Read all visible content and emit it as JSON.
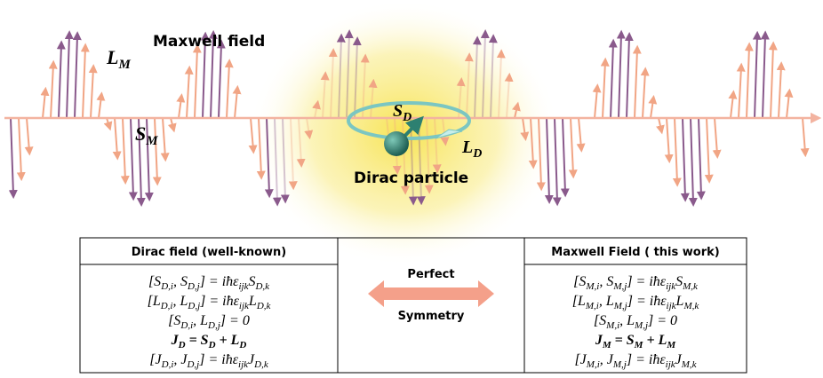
{
  "figure": {
    "maxwell_label": "Maxwell field",
    "lm_label": [
      "L",
      "M"
    ],
    "sm_label": [
      "S",
      "M"
    ],
    "sd_label": [
      "S",
      "D"
    ],
    "ld_label": [
      "L",
      "D"
    ],
    "dirac_label": "Dirac particle"
  },
  "table": {
    "left_header": "Dirac field (well-known)",
    "right_header": "Maxwell Field ( this work)",
    "middle_top": "Perfect",
    "middle_bottom": "Symmetry",
    "left_equations": [
      [
        "[S",
        "D,i",
        ", S",
        "D,j",
        "] = iħε",
        "ijk",
        "S",
        "D,k"
      ],
      [
        "[L",
        "D,i",
        ", L",
        "D,j",
        "] = iħε",
        "ijk",
        "L",
        "D,k"
      ],
      [
        "[S",
        "D,i",
        ", L",
        "D,j",
        "] = 0"
      ],
      [
        "J",
        "D",
        " = S",
        "D",
        " + L",
        "D"
      ],
      [
        "[J",
        "D,i",
        ", J",
        "D,j",
        "] = iħε",
        "ijk",
        "J",
        "D,k"
      ]
    ],
    "right_equations": [
      [
        "[S",
        "M,i",
        ", S",
        "M,j",
        "] = iħε",
        "ijk",
        "S",
        "M,k"
      ],
      [
        "[L",
        "M,i",
        ", L",
        "M,j",
        "] = iħε",
        "ijk",
        "L",
        "M,k"
      ],
      [
        "[S",
        "M,i",
        ", L",
        "M,j",
        "] = 0"
      ],
      [
        "J",
        "M",
        " = S",
        "M",
        " + L",
        "M"
      ],
      [
        "[J",
        "M,i",
        ", J",
        "M,j",
        "] = iħε",
        "ijk",
        "J",
        "M,k"
      ]
    ]
  }
}
